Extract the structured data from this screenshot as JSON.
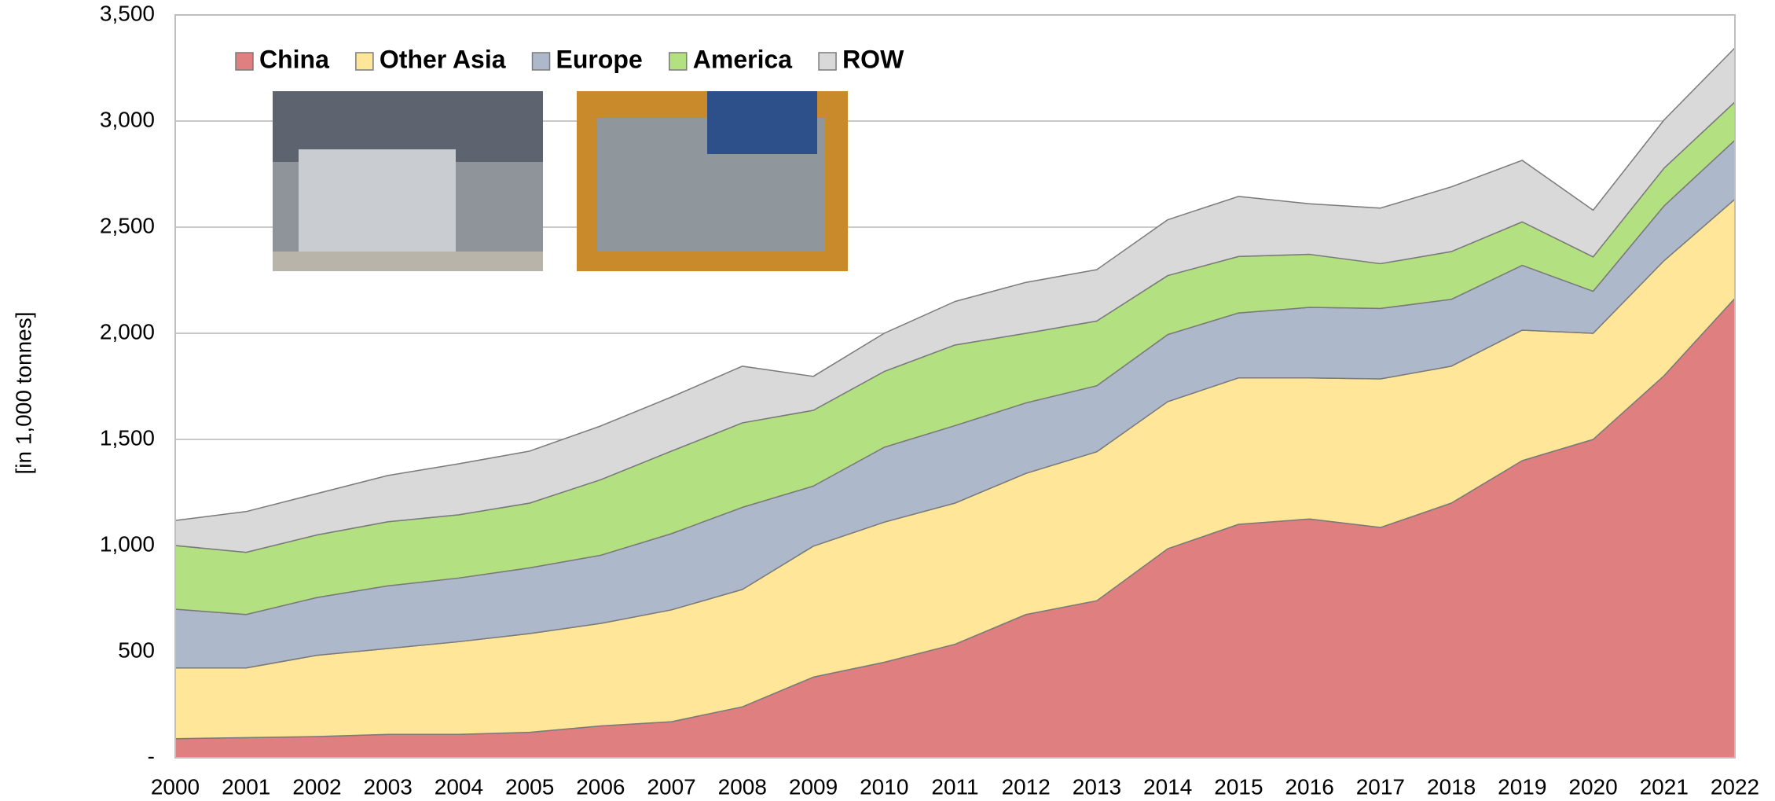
{
  "chart_data": {
    "type": "stacked-area",
    "y_label": "[in 1,000 tonnes]",
    "categories": [
      "2000",
      "2001",
      "2002",
      "2003",
      "2004",
      "2005",
      "2006",
      "2007",
      "2008",
      "2009",
      "2010",
      "2011",
      "2012",
      "2013",
      "2014",
      "2015",
      "2016",
      "2017",
      "2018",
      "2019",
      "2020",
      "2021",
      "2022"
    ],
    "series": [
      {
        "name": "China",
        "color": "#e07f7f",
        "values": [
          90,
          95,
          100,
          110,
          110,
          120,
          150,
          170,
          240,
          380,
          450,
          535,
          675,
          740,
          985,
          1100,
          1125,
          1085,
          1200,
          1400,
          1500,
          1800,
          2165
        ]
      },
      {
        "name": "Other Asia",
        "color": "#ffe699",
        "values": [
          333,
          328,
          383,
          405,
          437,
          465,
          483,
          527,
          553,
          617,
          660,
          665,
          665,
          702,
          693,
          690,
          665,
          700,
          645,
          615,
          500,
          542,
          467
        ]
      },
      {
        "name": "Europe",
        "color": "#adb9ca",
        "values": [
          277,
          252,
          272,
          295,
          300,
          310,
          321,
          359,
          387,
          283,
          353,
          365,
          332,
          311,
          316,
          306,
          332,
          332,
          315,
          305,
          198,
          258,
          278
        ]
      },
      {
        "name": "America",
        "color": "#b3e080",
        "values": [
          300,
          293,
          295,
          302,
          298,
          305,
          356,
          389,
          398,
          357,
          357,
          380,
          328,
          305,
          278,
          266,
          250,
          211,
          225,
          205,
          162,
          178,
          180
        ]
      },
      {
        "name": "ROW",
        "color": "#d9d9d9",
        "values": [
          118,
          192,
          195,
          218,
          240,
          245,
          253,
          255,
          267,
          160,
          180,
          205,
          240,
          242,
          263,
          283,
          238,
          262,
          305,
          290,
          220,
          227,
          255
        ]
      }
    ],
    "ylim": [
      0,
      3500
    ],
    "yticks": [
      {
        "value": 0,
        "label": "-"
      },
      500,
      {
        "value": 1000,
        "label": "1,000"
      },
      {
        "value": 1500,
        "label": "1,500"
      },
      {
        "value": 2000,
        "label": "2,000"
      },
      {
        "value": 2500,
        "label": "2,500"
      },
      {
        "value": 3000,
        "label": "3,000"
      },
      {
        "value": 3500,
        "label": "3,500"
      }
    ],
    "grid": true,
    "legend": "top-left"
  }
}
